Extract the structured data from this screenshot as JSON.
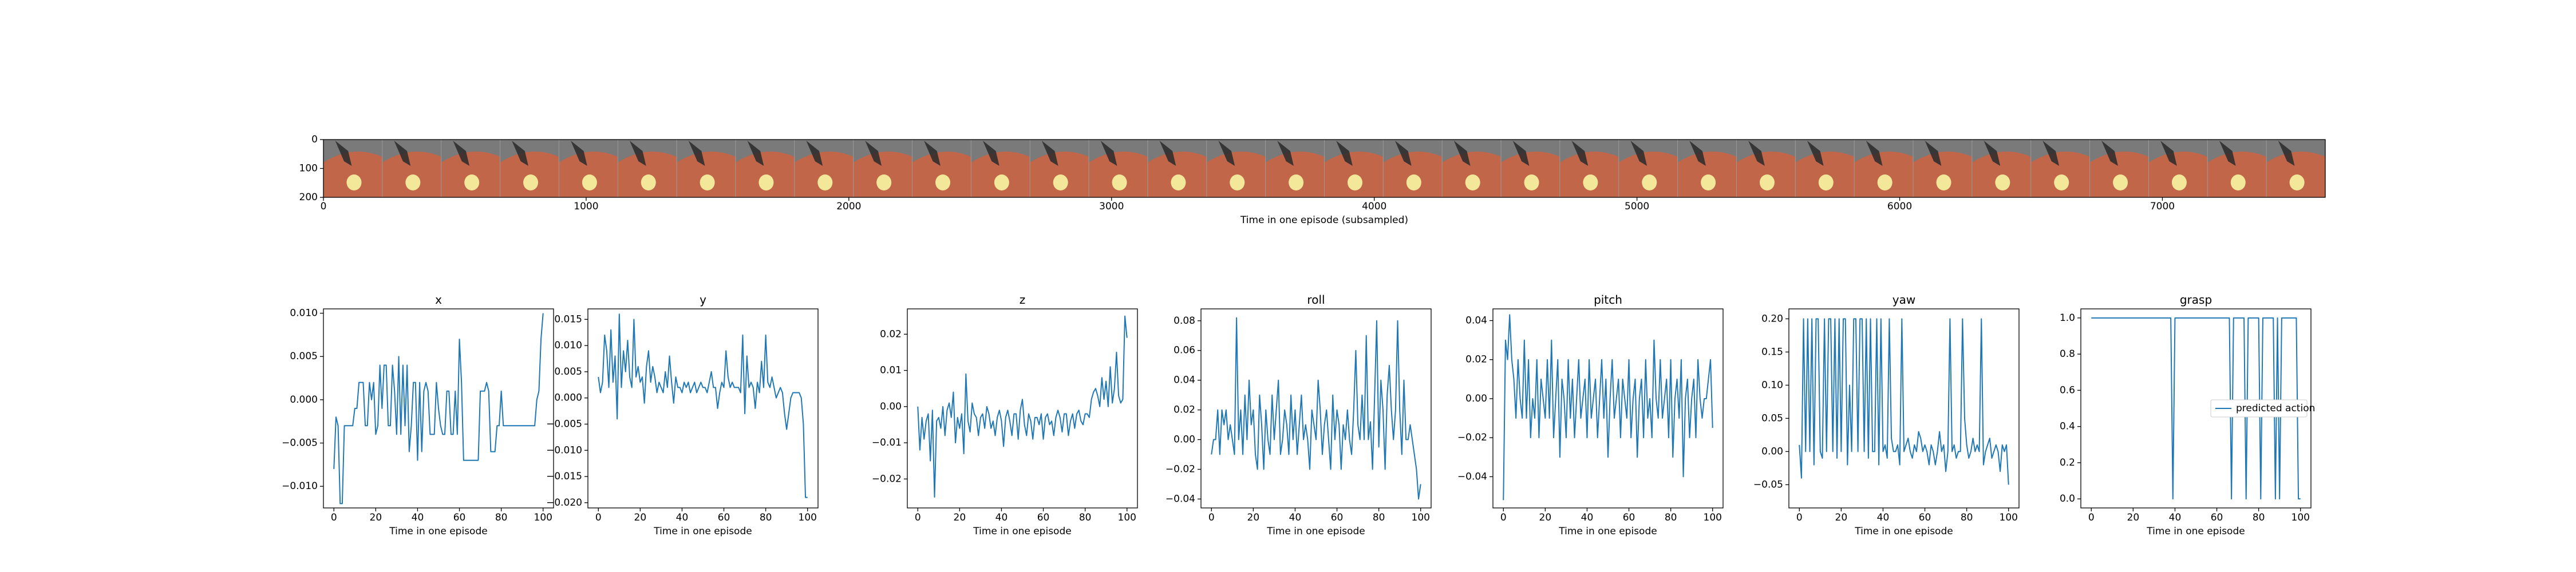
{
  "colors": {
    "line": "#1f77b4",
    "axis": "#000000",
    "strip_grey": "#7a7a7a",
    "strip_floor": "#c2664a",
    "strip_disc": "#f3e89a"
  },
  "chart_data": [
    {
      "type": "image_strip",
      "title": "",
      "xlabel": "Time in one episode (subsampled)",
      "xlim": [
        0,
        7620
      ],
      "ylim": [
        200,
        0
      ],
      "x_ticks": [
        0,
        1000,
        2000,
        3000,
        4000,
        5000,
        6000,
        7000
      ],
      "y_ticks": [
        0,
        100,
        200
      ],
      "frame_count": 34,
      "frame_width": 224
    },
    {
      "type": "line",
      "title": "x",
      "xlabel": "Time in one episode",
      "xlim": [
        -5,
        105
      ],
      "ylim": [
        -0.0125,
        0.0105
      ],
      "x_ticks": [
        0,
        20,
        40,
        60,
        80,
        100
      ],
      "y_ticks": [
        -0.01,
        -0.005,
        0.0,
        0.005,
        0.01
      ],
      "y_tick_labels": [
        "−0.010",
        "−0.005",
        "0.000",
        "0.005",
        "0.010"
      ],
      "values": [
        -0.008,
        -0.002,
        -0.003,
        -0.012,
        -0.012,
        -0.003,
        -0.003,
        -0.003,
        -0.003,
        -0.003,
        -0.001,
        -0.001,
        0.002,
        0.002,
        0.002,
        -0.003,
        -0.003,
        0.002,
        0.0,
        0.002,
        -0.004,
        -0.003,
        0.004,
        -0.001,
        0.004,
        0.004,
        -0.003,
        -0.003,
        0.004,
        0.001,
        -0.004,
        0.005,
        -0.004,
        0.004,
        -0.003,
        0.004,
        -0.006,
        -0.003,
        0.002,
        0.002,
        -0.007,
        0.002,
        -0.006,
        0.001,
        0.002,
        0.001,
        -0.004,
        -0.004,
        -0.004,
        0.002,
        -0.001,
        -0.003,
        -0.004,
        -0.004,
        0.001,
        0.001,
        -0.004,
        -0.004,
        0.001,
        -0.004,
        0.007,
        0.002,
        -0.007,
        -0.007,
        -0.007,
        -0.007,
        -0.007,
        -0.007,
        -0.007,
        -0.007,
        0.001,
        0.001,
        0.001,
        0.002,
        0.001,
        -0.006,
        -0.006,
        -0.006,
        -0.003,
        -0.003,
        0.001,
        -0.003,
        -0.003,
        -0.003,
        -0.003,
        -0.003,
        -0.003,
        -0.003,
        -0.003,
        -0.003,
        -0.003,
        -0.003,
        -0.003,
        -0.003,
        -0.003,
        -0.003,
        -0.003,
        0.0,
        0.001,
        0.007,
        0.01
      ]
    },
    {
      "type": "line",
      "title": "y",
      "xlabel": "Time in one episode",
      "xlim": [
        -5,
        105
      ],
      "ylim": [
        -0.021,
        0.017
      ],
      "x_ticks": [
        0,
        20,
        40,
        60,
        80,
        100
      ],
      "y_ticks": [
        -0.02,
        -0.015,
        -0.01,
        -0.005,
        0.0,
        0.005,
        0.01,
        0.015
      ],
      "y_tick_labels": [
        "−0.020",
        "−0.015",
        "−0.010",
        "−0.005",
        "0.000",
        "0.005",
        "0.010",
        "0.015"
      ],
      "values": [
        0.004,
        0.001,
        0.003,
        0.012,
        0.009,
        0.002,
        0.013,
        0.003,
        0.008,
        -0.004,
        0.016,
        0.002,
        0.009,
        0.005,
        0.011,
        0.004,
        0.002,
        0.015,
        0.004,
        0.006,
        0.003,
        0.004,
        -0.001,
        0.006,
        0.009,
        0.003,
        0.006,
        0.004,
        0.001,
        0.003,
        0.002,
        0.001,
        0.005,
        0.002,
        0.008,
        0.003,
        -0.001,
        0.004,
        0.002,
        0.002,
        0.001,
        0.003,
        0.002,
        0.003,
        0.001,
        0.002,
        0.003,
        0.001,
        0.002,
        0.003,
        0.002,
        0.002,
        0.001,
        0.003,
        0.005,
        0.002,
        0.002,
        -0.002,
        0.001,
        0.003,
        0.002,
        0.009,
        0.004,
        0.002,
        0.003,
        0.002,
        0.002,
        0.002,
        0.001,
        0.012,
        -0.003,
        0.008,
        0.002,
        0.003,
        0.002,
        -0.002,
        0.003,
        0.001,
        0.007,
        0.002,
        0.012,
        0.003,
        0.002,
        0.004,
        0.002,
        0.0,
        0.001,
        0.002,
        0.001,
        -0.003,
        -0.006,
        -0.003,
        0.0,
        0.001,
        0.001,
        0.001,
        0.001,
        0.0,
        -0.005,
        -0.019,
        -0.019
      ]
    },
    {
      "type": "line",
      "title": "z",
      "xlabel": "Time in one episode",
      "xlim": [
        -5,
        105
      ],
      "ylim": [
        -0.028,
        0.027
      ],
      "x_ticks": [
        0,
        20,
        40,
        60,
        80,
        100
      ],
      "y_ticks": [
        -0.02,
        -0.01,
        0.0,
        0.01,
        0.02
      ],
      "y_tick_labels": [
        "−0.02",
        "−0.01",
        "0.00",
        "0.01",
        "0.02"
      ],
      "values": [
        0.0,
        -0.012,
        -0.003,
        -0.009,
        -0.004,
        -0.002,
        -0.015,
        -0.001,
        -0.025,
        -0.004,
        -0.003,
        -0.006,
        0.0,
        -0.008,
        -0.001,
        0.001,
        -0.003,
        0.004,
        -0.01,
        -0.003,
        -0.006,
        -0.002,
        -0.013,
        0.009,
        -0.004,
        -0.007,
        0.001,
        -0.002,
        -0.003,
        -0.008,
        -0.003,
        -0.002,
        -0.006,
        0.0,
        -0.002,
        -0.006,
        -0.004,
        -0.008,
        -0.003,
        -0.001,
        -0.004,
        -0.011,
        -0.003,
        -0.001,
        -0.004,
        -0.008,
        -0.002,
        -0.002,
        -0.009,
        -0.001,
        0.002,
        -0.005,
        -0.008,
        -0.002,
        -0.004,
        -0.009,
        -0.003,
        -0.003,
        -0.005,
        -0.002,
        -0.009,
        -0.003,
        -0.002,
        -0.005,
        -0.004,
        -0.008,
        -0.003,
        -0.001,
        -0.003,
        -0.007,
        -0.002,
        -0.002,
        -0.008,
        -0.004,
        -0.002,
        -0.006,
        -0.002,
        -0.001,
        -0.004,
        -0.005,
        -0.002,
        -0.002,
        -0.003,
        0.002,
        0.004,
        0.005,
        0.003,
        0.0,
        0.008,
        0.002,
        0.007,
        0.0,
        0.011,
        0.001,
        0.005,
        0.015,
        0.003,
        0.001,
        0.002,
        0.025,
        0.019
      ]
    },
    {
      "type": "line",
      "title": "roll",
      "xlabel": "Time in one episode",
      "xlim": [
        -5,
        105
      ],
      "ylim": [
        -0.046,
        0.088
      ],
      "x_ticks": [
        0,
        20,
        40,
        60,
        80,
        100
      ],
      "y_ticks": [
        -0.04,
        -0.02,
        0.0,
        0.02,
        0.04,
        0.06,
        0.08
      ],
      "y_tick_labels": [
        "−0.04",
        "−0.02",
        "0.00",
        "0.02",
        "0.04",
        "0.06",
        "0.08"
      ],
      "values": [
        -0.01,
        0.0,
        0.0,
        0.02,
        -0.01,
        0.02,
        0.01,
        0.02,
        0.0,
        0.01,
        0.0,
        -0.01,
        0.082,
        0.0,
        0.02,
        -0.01,
        0.03,
        0.0,
        0.04,
        0.01,
        0.02,
        -0.01,
        -0.02,
        0.03,
        0.01,
        -0.02,
        0.02,
        0.0,
        -0.01,
        0.03,
        0.0,
        0.02,
        0.04,
        -0.01,
        0.0,
        0.02,
        0.01,
        -0.01,
        0.03,
        0.0,
        0.02,
        -0.01,
        0.01,
        0.03,
        0.0,
        0.01,
        0.0,
        -0.02,
        0.02,
        0.01,
        0.0,
        0.04,
        0.02,
        -0.01,
        0.01,
        0.02,
        0.0,
        -0.02,
        0.03,
        0.0,
        0.02,
        0.01,
        -0.02,
        0.01,
        0.0,
        0.02,
        0.0,
        -0.01,
        0.02,
        0.06,
        0.01,
        0.0,
        0.03,
        0.0,
        0.07,
        0.0,
        0.012,
        -0.02,
        0.03,
        0.08,
        -0.005,
        0.04,
        0.02,
        -0.02,
        0.03,
        0.05,
        0.02,
        0.0,
        0.02,
        0.08,
        0.02,
        -0.01,
        0.04,
        0.0,
        0.0,
        0.01,
        0.0,
        -0.01,
        -0.02,
        -0.04,
        -0.03
      ]
    },
    {
      "type": "line",
      "title": "pitch",
      "xlabel": "Time in one episode",
      "xlim": [
        -5,
        105
      ],
      "ylim": [
        -0.056,
        0.046
      ],
      "x_ticks": [
        0,
        20,
        40,
        60,
        80,
        100
      ],
      "y_ticks": [
        -0.04,
        -0.02,
        0.0,
        0.02,
        0.04
      ],
      "y_tick_labels": [
        "−0.04",
        "−0.02",
        "0.00",
        "0.02",
        "0.04"
      ],
      "values": [
        -0.052,
        0.03,
        0.02,
        0.043,
        0.02,
        0.01,
        -0.01,
        0.02,
        0.0,
        -0.01,
        0.03,
        -0.01,
        0.02,
        -0.02,
        0.0,
        -0.01,
        0.02,
        -0.02,
        0.01,
        0.0,
        -0.01,
        0.02,
        -0.01,
        0.03,
        -0.02,
        0.0,
        0.02,
        -0.03,
        0.01,
        0.0,
        -0.02,
        0.02,
        -0.01,
        0.01,
        -0.02,
        0.0,
        0.02,
        -0.01,
        0.0,
        0.01,
        -0.02,
        0.02,
        -0.01,
        0.0,
        0.01,
        -0.02,
        0.0,
        0.02,
        -0.01,
        0.01,
        -0.03,
        0.0,
        0.02,
        -0.01,
        0.0,
        0.01,
        -0.02,
        0.01,
        0.0,
        -0.01,
        0.02,
        -0.02,
        0.0,
        0.01,
        -0.03,
        0.0,
        0.01,
        -0.02,
        0.02,
        -0.01,
        0.0,
        -0.02,
        0.03,
        0.0,
        -0.01,
        0.02,
        -0.01,
        0.0,
        0.01,
        -0.02,
        0.02,
        -0.03,
        0.0,
        0.01,
        -0.01,
        0.02,
        -0.04,
        0.0,
        0.01,
        -0.02,
        0.0,
        0.01,
        -0.02,
        0.02,
        0.0,
        -0.01,
        0.0,
        0.0,
        0.01,
        0.02,
        -0.015
      ]
    },
    {
      "type": "line",
      "title": "yaw",
      "xlabel": "Time in one episode",
      "xlim": [
        -5,
        105
      ],
      "ylim": [
        -0.085,
        0.215
      ],
      "x_ticks": [
        0,
        20,
        40,
        60,
        80,
        100
      ],
      "y_ticks": [
        -0.05,
        0.0,
        0.05,
        0.1,
        0.15,
        0.2
      ],
      "y_tick_labels": [
        "−0.05",
        "0.00",
        "0.05",
        "0.10",
        "0.15",
        "0.20"
      ],
      "values": [
        0.01,
        -0.04,
        0.2,
        0.0,
        0.2,
        0.0,
        0.2,
        -0.02,
        0.2,
        0.2,
        0.0,
        -0.01,
        0.2,
        0.0,
        0.2,
        0.2,
        0.0,
        0.2,
        -0.01,
        0.2,
        0.0,
        0.2,
        0.2,
        -0.02,
        0.1,
        0.0,
        0.2,
        0.2,
        0.0,
        0.2,
        0.2,
        0.0,
        0.2,
        -0.01,
        0.2,
        0.0,
        0.0,
        0.2,
        -0.02,
        0.2,
        0.0,
        0.01,
        -0.01,
        0.2,
        0.02,
        0.0,
        0.0,
        0.01,
        -0.02,
        0.2,
        0.0,
        0.01,
        0.02,
        0.0,
        -0.01,
        0.01,
        0.0,
        0.03,
        0.02,
        0.0,
        0.01,
        0.0,
        -0.02,
        0.01,
        0.0,
        -0.02,
        0.0,
        0.03,
        0.0,
        0.01,
        -0.03,
        0.0,
        0.2,
        0.0,
        0.01,
        -0.01,
        0.0,
        0.0,
        0.2,
        0.05,
        0.01,
        -0.01,
        0.0,
        0.02,
        0.0,
        0.01,
        0.0,
        0.2,
        -0.02,
        0.0,
        0.01,
        0.02,
        -0.01,
        0.0,
        0.01,
        0.0,
        -0.03,
        0.01,
        0.0,
        0.01,
        -0.05
      ]
    },
    {
      "type": "line",
      "title": "grasp",
      "xlabel": "Time in one episode",
      "xlim": [
        -5,
        105
      ],
      "ylim": [
        -0.05,
        1.05
      ],
      "x_ticks": [
        0,
        20,
        40,
        60,
        80,
        100
      ],
      "y_ticks": [
        0.0,
        0.2,
        0.4,
        0.6,
        0.8,
        1.0
      ],
      "y_tick_labels": [
        "0.0",
        "0.2",
        "0.4",
        "0.6",
        "0.8",
        "1.0"
      ],
      "legend": {
        "label": "predicted action",
        "placement": "center-right"
      },
      "series": [
        {
          "name": "predicted action",
          "values": [
            1,
            1,
            1,
            1,
            1,
            1,
            1,
            1,
            1,
            1,
            1,
            1,
            1,
            1,
            1,
            1,
            1,
            1,
            1,
            1,
            1,
            1,
            1,
            1,
            1,
            1,
            1,
            1,
            1,
            1,
            1,
            1,
            1,
            1,
            1,
            1,
            1,
            1,
            1,
            0,
            1,
            1,
            1,
            1,
            1,
            1,
            1,
            1,
            1,
            1,
            1,
            1,
            1,
            1,
            1,
            1,
            1,
            1,
            1,
            1,
            1,
            1,
            1,
            1,
            1,
            1,
            1,
            0,
            1,
            1,
            1,
            1,
            1,
            1,
            0,
            1,
            1,
            1,
            1,
            1,
            1,
            0,
            1,
            1,
            1,
            1,
            1,
            1,
            0,
            1,
            0,
            1,
            1,
            1,
            1,
            1,
            1,
            1,
            1,
            0,
            0
          ]
        }
      ]
    }
  ]
}
